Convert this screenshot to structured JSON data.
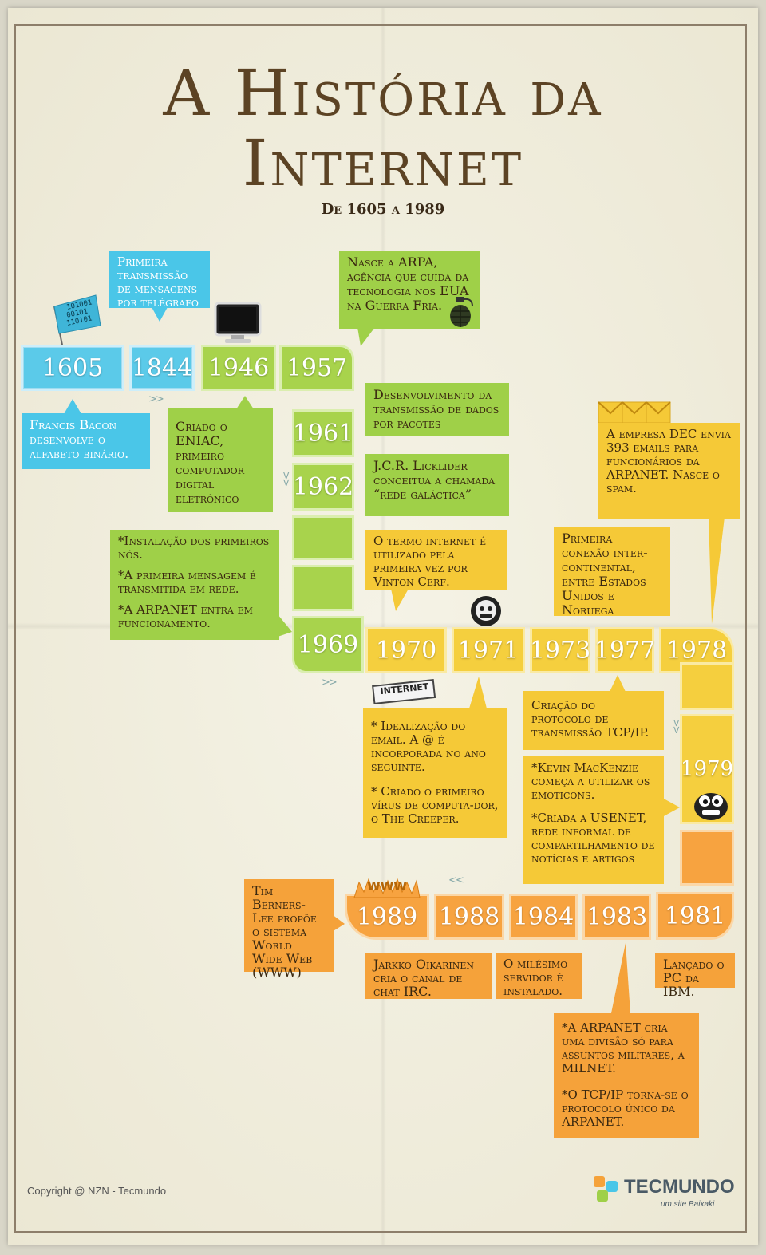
{
  "title": {
    "line1": "A História da",
    "line2": "Internet",
    "subtitle": "De 1605 a 1989"
  },
  "years": {
    "y1605": "1605",
    "y1844": "1844",
    "y1946": "1946",
    "y1957": "1957",
    "y1961": "1961",
    "y1962": "1962",
    "y1969": "1969",
    "y1970": "1970",
    "y1971": "1971",
    "y1973": "1973",
    "y1977": "1977",
    "y1978": "1978",
    "y1979": "1979",
    "y1981": "1981",
    "y1983": "1983",
    "y1984": "1984",
    "y1988": "1988",
    "y1989": "1989"
  },
  "events": {
    "e1844": "Primeira transmissão de mensagens por telégrafo",
    "e1605": "Francis Bacon desenvolve o alfabeto binário.",
    "e1946": "Criado o ENIAC, primeiro computador digital eletrônico",
    "e1957": "Nasce a ARPA, agência que cuida da tecnologia nos EUA na Guerra Fria.",
    "e1961": "Desenvolvimento da transmissão de dados por pacotes",
    "e1962": "J.C.R. Licklider conceitua a chamada “rede galáctica”",
    "e1969a": "*Instalação dos primeiros nós.",
    "e1969b": "*A primeira mensagem é transmitida em rede.",
    "e1969c": "*A ARPANET entra em funcionamento.",
    "e1970": "O termo internet é utilizado pela primeira vez por Vinton Cerf.",
    "e1973": "Primeira conexão inter-continental, entre Estados Unidos e Noruega",
    "e1978": "A empresa DEC envia 393 emails para funcionários da ARPANET. Nasce o spam.",
    "e1971a": "* Idealização do email. A @ é incorporada no ano seguinte.",
    "e1971b": "* Criado o primeiro vírus de computa-dor, o The Creeper.",
    "e1977": "Criação do protocolo de transmissão TCP/IP.",
    "e1979a": "*Kevin MacKenzie começa a utilizar os emoticons.",
    "e1979b": "*Criada a USENET, rede informal de compartilhamento de notícias e artigos",
    "e1989": "Tim Berners-Lee propõe o sistema World Wide Web (WWW)",
    "e1988": "Jarkko Oikarinen cria o canal de chat IRC.",
    "e1984": "O milésimo servidor é instalado.",
    "e1981": "Lançado o PC da IBM.",
    "e1983a": "*A ARPANET cria uma divisão só para assuntos militares, a MILNET.",
    "e1983b": "*O TCP/IP torna-se o protocolo único da ARPANET."
  },
  "labels": {
    "flag_bits": "101001 00101 110101",
    "internet_sign": "INTERNET",
    "www": "WWW"
  },
  "footer": {
    "copyright": "Copyright @ NZN - Tecmundo",
    "brand": "TECMUNDO",
    "brand_tag": "um site Baixaki"
  },
  "colors": {
    "blue": "#4ac6e8",
    "green": "#9fd048",
    "yellow": "#f5c937",
    "orange": "#f5a23a",
    "title": "#5c4324"
  }
}
